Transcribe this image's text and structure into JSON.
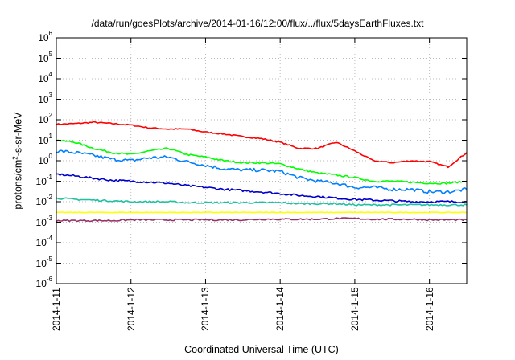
{
  "chart_data": {
    "type": "line",
    "title": "/data/run/goesPlots/archive/2014-01-16/12:00/flux/../flux/5daysEarthFluxes.txt",
    "xlabel": "Coordinated Universal Time (UTC)",
    "ylabel_parts": [
      "protons/cm",
      "2",
      "-s-sr-MeV"
    ],
    "y_scale": "log",
    "ylim": [
      1e-06,
      1000000.0
    ],
    "xlim": [
      "2014-1-11",
      "2014-1-16 12:00"
    ],
    "grid": true,
    "legend": "none",
    "y_ticks": [
      {
        "base": "10",
        "exp": "6",
        "value": 1000000.0
      },
      {
        "base": "10",
        "exp": "5",
        "value": 100000.0
      },
      {
        "base": "10",
        "exp": "4",
        "value": 10000.0
      },
      {
        "base": "10",
        "exp": "3",
        "value": 1000.0
      },
      {
        "base": "10",
        "exp": "2",
        "value": 100.0
      },
      {
        "base": "10",
        "exp": "1",
        "value": 10.0
      },
      {
        "base": "10",
        "exp": "0",
        "value": 1.0
      },
      {
        "base": "10",
        "exp": "-1",
        "value": 0.1
      },
      {
        "base": "10",
        "exp": "-2",
        "value": 0.01
      },
      {
        "base": "10",
        "exp": "-3",
        "value": 0.001
      },
      {
        "base": "10",
        "exp": "-4",
        "value": 0.0001
      },
      {
        "base": "10",
        "exp": "-5",
        "value": 1e-05
      },
      {
        "base": "10",
        "exp": "-6",
        "value": 1e-06
      }
    ],
    "x_ticks": [
      "2014-1-11",
      "2014-1-12",
      "2014-1-13",
      "2014-1-14",
      "2014-1-15",
      "2014-1-16"
    ],
    "x": [
      "2014-1-11 00:00",
      "2014-1-11 06:00",
      "2014-1-11 12:00",
      "2014-1-11 18:00",
      "2014-1-12 00:00",
      "2014-1-12 06:00",
      "2014-1-12 12:00",
      "2014-1-12 18:00",
      "2014-1-13 00:00",
      "2014-1-13 06:00",
      "2014-1-13 12:00",
      "2014-1-13 18:00",
      "2014-1-14 00:00",
      "2014-1-14 06:00",
      "2014-1-14 12:00",
      "2014-1-14 18:00",
      "2014-1-15 00:00",
      "2014-1-15 06:00",
      "2014-1-15 12:00",
      "2014-1-15 18:00",
      "2014-1-16 00:00",
      "2014-1-16 06:00",
      "2014-1-16 12:00"
    ],
    "series": [
      {
        "color": "#ff0000",
        "noise": 0.03,
        "values": [
          60,
          65,
          75,
          65,
          55,
          40,
          35,
          35,
          25,
          20,
          15,
          12,
          8,
          4,
          4,
          8,
          3,
          1,
          0.8,
          1,
          0.9,
          0.5,
          2.5
        ]
      },
      {
        "color": "#00ff00",
        "noise": 0.04,
        "values": [
          10,
          8,
          4,
          2.5,
          2,
          3,
          4,
          2,
          1.5,
          1,
          0.8,
          0.8,
          0.7,
          0.4,
          0.25,
          0.2,
          0.15,
          0.1,
          0.1,
          0.09,
          0.08,
          0.08,
          0.1
        ]
      },
      {
        "color": "#0080ff",
        "noise": 0.08,
        "values": [
          3,
          2.5,
          1.8,
          1.2,
          1,
          1.4,
          1.5,
          0.9,
          0.6,
          0.4,
          0.35,
          0.35,
          0.3,
          0.15,
          0.1,
          0.08,
          0.05,
          0.05,
          0.04,
          0.04,
          0.03,
          0.03,
          0.04
        ]
      },
      {
        "color": "#0000cc",
        "noise": 0.05,
        "values": [
          0.22,
          0.18,
          0.14,
          0.11,
          0.1,
          0.09,
          0.08,
          0.06,
          0.05,
          0.04,
          0.035,
          0.03,
          0.025,
          0.02,
          0.018,
          0.015,
          0.013,
          0.012,
          0.011,
          0.01,
          0.01,
          0.01,
          0.01
        ]
      },
      {
        "color": "#20c0a0",
        "noise": 0.04,
        "values": [
          0.015,
          0.013,
          0.012,
          0.011,
          0.01,
          0.01,
          0.01,
          0.009,
          0.009,
          0.009,
          0.009,
          0.009,
          0.009,
          0.008,
          0.008,
          0.008,
          0.007,
          0.007,
          0.007,
          0.007,
          0.007,
          0.007,
          0.007
        ]
      },
      {
        "color": "#ffff00",
        "noise": 0.015,
        "values": [
          0.003,
          0.003,
          0.003,
          0.003,
          0.003,
          0.003,
          0.003,
          0.003,
          0.003,
          0.003,
          0.003,
          0.003,
          0.003,
          0.003,
          0.003,
          0.003,
          0.003,
          0.003,
          0.003,
          0.003,
          0.003,
          0.003,
          0.003
        ]
      },
      {
        "color": "#993366",
        "noise": 0.04,
        "values": [
          0.0012,
          0.0012,
          0.0012,
          0.0012,
          0.0013,
          0.0013,
          0.0013,
          0.0013,
          0.0013,
          0.0013,
          0.0013,
          0.0014,
          0.0014,
          0.0014,
          0.0014,
          0.0015,
          0.0015,
          0.0014,
          0.0014,
          0.0014,
          0.0013,
          0.0013,
          0.0013
        ]
      }
    ]
  }
}
